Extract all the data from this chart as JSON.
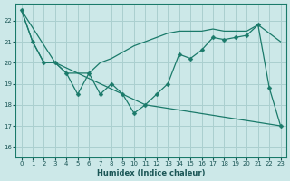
{
  "xlabel": "Humidex (Indice chaleur)",
  "bg_color": "#cce8e8",
  "grid_color": "#aacfcf",
  "line_color": "#1a7a6a",
  "xlim": [
    -0.5,
    23.5
  ],
  "ylim": [
    15.5,
    22.8
  ],
  "yticks": [
    16,
    17,
    18,
    19,
    20,
    21,
    22
  ],
  "xticks": [
    0,
    1,
    2,
    3,
    4,
    5,
    6,
    7,
    8,
    9,
    10,
    11,
    12,
    13,
    14,
    15,
    16,
    17,
    18,
    19,
    20,
    21,
    22,
    23
  ],
  "line1_x": [
    0,
    1,
    2,
    3,
    4,
    5,
    6,
    7,
    8,
    9,
    10,
    11,
    12,
    13,
    14,
    15,
    16,
    17,
    18,
    19,
    20,
    21,
    22,
    23
  ],
  "line1_y": [
    22.5,
    21.0,
    20.0,
    20.0,
    19.5,
    19.5,
    19.5,
    20.0,
    20.2,
    20.5,
    20.8,
    21.0,
    21.2,
    21.4,
    21.5,
    21.5,
    21.5,
    21.6,
    21.5,
    21.5,
    21.5,
    21.8,
    21.4,
    21.0
  ],
  "line2_x": [
    0,
    1,
    2,
    3,
    4,
    5,
    6,
    7,
    8,
    9,
    10,
    11,
    12,
    13,
    14,
    15,
    16,
    17,
    18,
    19,
    20,
    21,
    22,
    23
  ],
  "line2_y": [
    22.5,
    21.0,
    20.0,
    20.0,
    19.5,
    18.5,
    19.5,
    18.5,
    19.0,
    18.5,
    17.6,
    18.0,
    18.5,
    19.0,
    20.4,
    20.2,
    20.6,
    21.2,
    21.1,
    21.2,
    21.3,
    21.8,
    18.8,
    17.0
  ],
  "line3_x": [
    0,
    3,
    11,
    23
  ],
  "line3_y": [
    22.5,
    20.0,
    18.0,
    17.0
  ]
}
